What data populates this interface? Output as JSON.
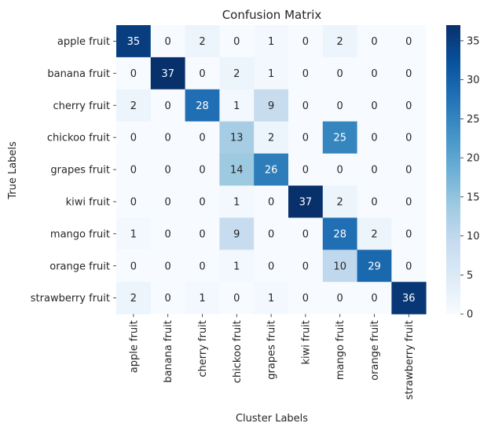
{
  "chart_data": {
    "type": "heatmap",
    "title": "Confusion Matrix",
    "xlabel": "Cluster Labels",
    "ylabel": "True Labels",
    "x_categories": [
      "apple fruit",
      "banana fruit",
      "cherry fruit",
      "chickoo fruit",
      "grapes fruit",
      "kiwi fruit",
      "mango fruit",
      "orange fruit",
      "strawberry fruit"
    ],
    "y_categories": [
      "apple fruit",
      "banana fruit",
      "cherry fruit",
      "chickoo fruit",
      "grapes fruit",
      "kiwi fruit",
      "mango fruit",
      "orange fruit",
      "strawberry fruit"
    ],
    "values": [
      [
        35,
        0,
        2,
        0,
        1,
        0,
        2,
        0,
        0
      ],
      [
        0,
        37,
        0,
        2,
        1,
        0,
        0,
        0,
        0
      ],
      [
        2,
        0,
        28,
        1,
        9,
        0,
        0,
        0,
        0
      ],
      [
        0,
        0,
        0,
        13,
        2,
        0,
        25,
        0,
        0
      ],
      [
        0,
        0,
        0,
        14,
        26,
        0,
        0,
        0,
        0
      ],
      [
        0,
        0,
        0,
        1,
        0,
        37,
        2,
        0,
        0
      ],
      [
        1,
        0,
        0,
        9,
        0,
        0,
        28,
        2,
        0
      ],
      [
        0,
        0,
        0,
        1,
        0,
        0,
        10,
        29,
        0
      ],
      [
        2,
        0,
        1,
        0,
        1,
        0,
        0,
        0,
        36
      ]
    ],
    "colormap": "Blues",
    "colorbar": {
      "min": 0,
      "max": 37,
      "ticks": [
        0,
        5,
        10,
        15,
        20,
        25,
        30,
        35
      ]
    },
    "annotations": true
  }
}
